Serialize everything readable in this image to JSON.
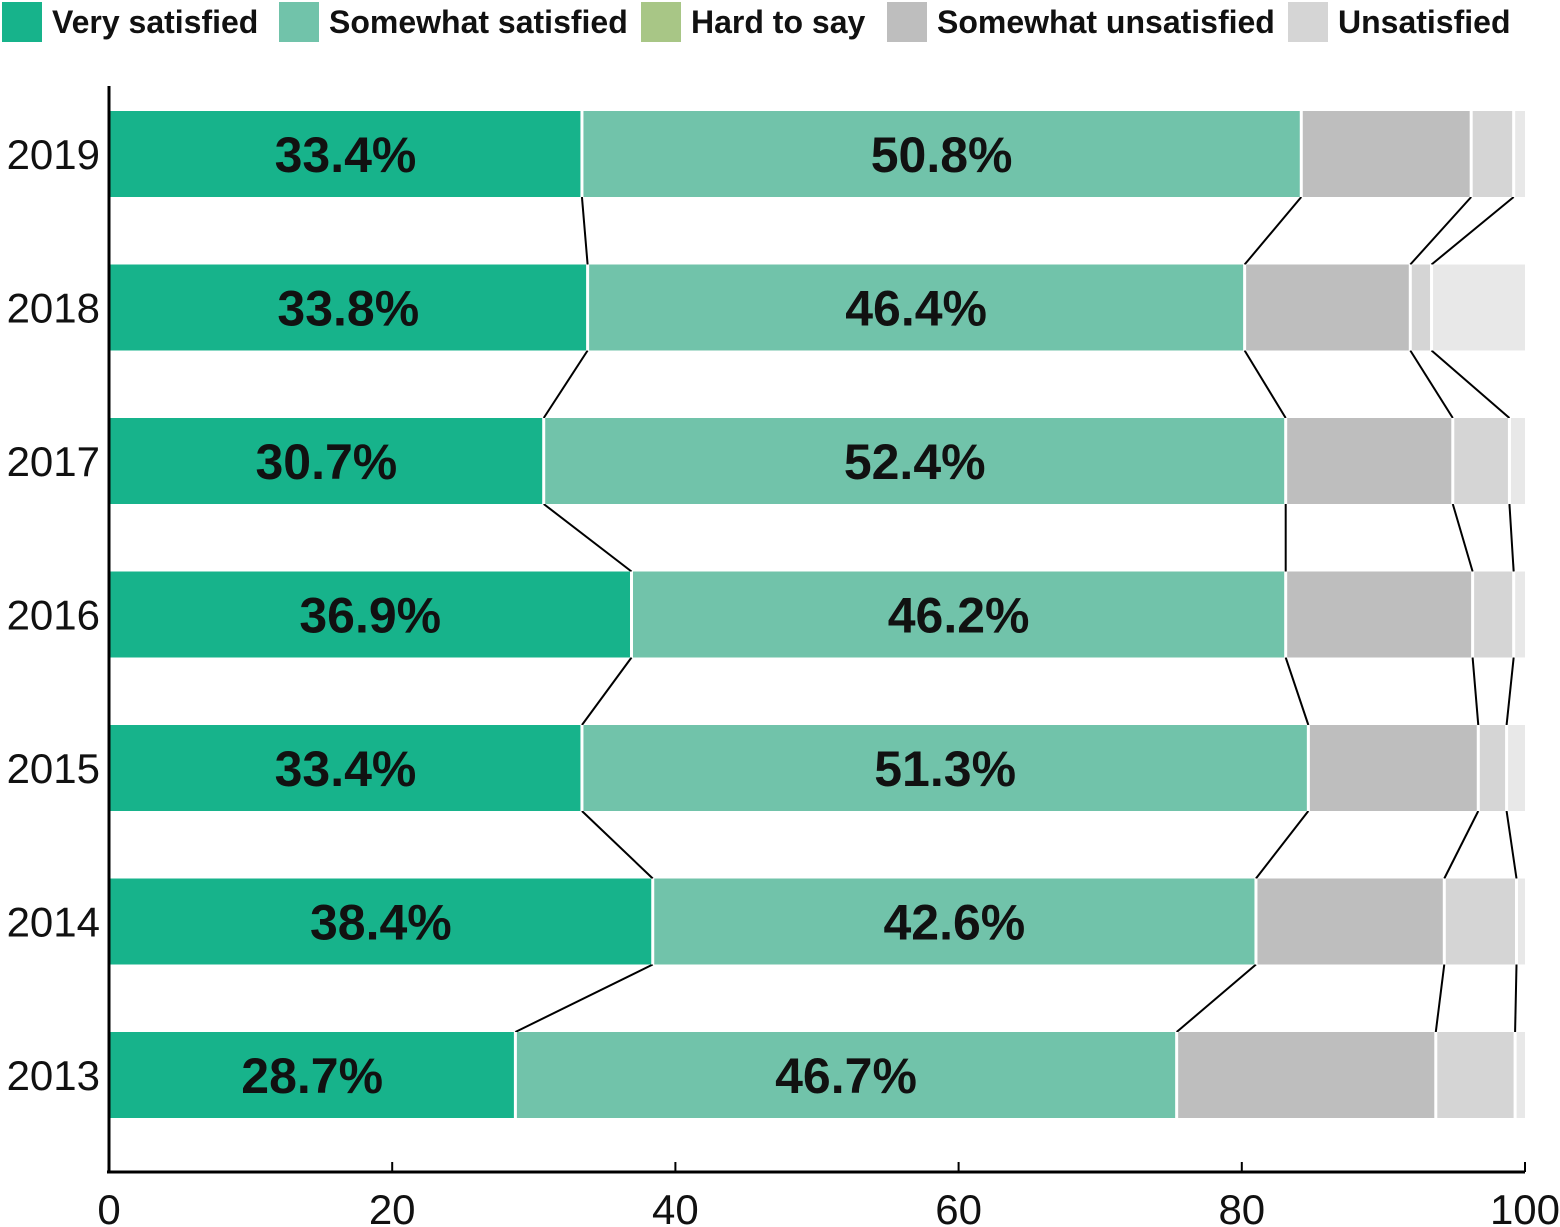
{
  "chart_data": {
    "type": "bar",
    "orientation": "horizontal",
    "stacked": true,
    "categories": [
      "2019",
      "2018",
      "2017",
      "2016",
      "2015",
      "2014",
      "2013"
    ],
    "series": [
      {
        "name": "Very satisfied",
        "color": "#17b38b",
        "values": [
          33.4,
          33.8,
          30.7,
          36.9,
          33.4,
          38.4,
          28.7
        ],
        "labels": [
          "33.4%",
          "33.8%",
          "30.7%",
          "36.9%",
          "33.4%",
          "38.4%",
          "28.7%"
        ]
      },
      {
        "name": "Somewhat satisfied",
        "color": "#71c3aa",
        "values": [
          50.8,
          46.4,
          52.4,
          46.2,
          51.3,
          42.6,
          46.7
        ],
        "labels": [
          "50.8%",
          "46.4%",
          "52.4%",
          "46.2%",
          "51.3%",
          "42.6%",
          "46.7%"
        ]
      },
      {
        "name": "Hard to say",
        "color": "#a8c686",
        "values": [
          0,
          0,
          0,
          0,
          0,
          0,
          0
        ],
        "labels": []
      },
      {
        "name": "Somewhat unsatisfied",
        "color": "#bebebe",
        "values": [
          12.0,
          11.7,
          11.8,
          13.2,
          12.0,
          13.3,
          18.3
        ],
        "labels": []
      },
      {
        "name": "Unsatisfied",
        "color": "#d5d5d5",
        "values": [
          3.0,
          1.5,
          4.0,
          2.9,
          2.0,
          5.1,
          5.6
        ],
        "labels": []
      },
      {
        "name": "",
        "color": "#e8e8e8",
        "values": [
          0.8,
          6.6,
          1.1,
          0.8,
          1.3,
          0.6,
          0.7
        ],
        "labels": []
      }
    ],
    "legend": [
      "Very satisfied",
      "Somewhat satisfied",
      "Hard to say",
      "Somewhat unsatisfied",
      "Unsatisfied"
    ],
    "legend_position": "top",
    "xlim": [
      0,
      100
    ],
    "xticks": [
      0,
      20,
      40,
      60,
      80,
      100
    ],
    "xtick_labels": [
      "0",
      "20",
      "40",
      "60",
      "80",
      "100"
    ],
    "grid": false,
    "connector_lines": true,
    "title": "",
    "xlabel": "",
    "ylabel": ""
  }
}
